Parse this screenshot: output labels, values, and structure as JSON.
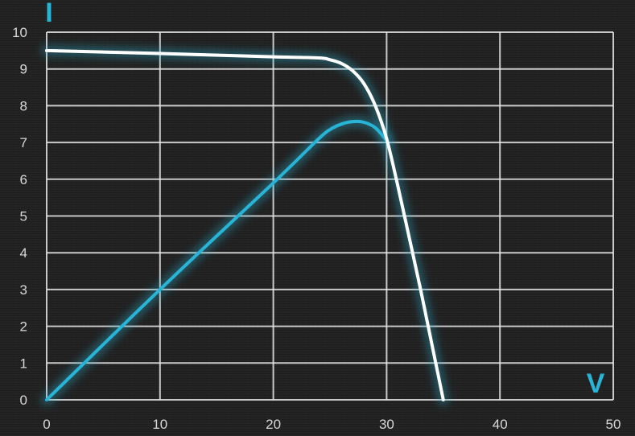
{
  "chart_data": {
    "type": "line",
    "title": "",
    "xlabel": "V",
    "ylabel": "I",
    "xlim": [
      0,
      50
    ],
    "ylim": [
      0,
      10
    ],
    "x_ticks": [
      0,
      10,
      20,
      30,
      40,
      50
    ],
    "y_ticks": [
      0,
      1,
      2,
      3,
      4,
      5,
      6,
      7,
      8,
      9,
      10
    ],
    "grid": true,
    "legend": "none",
    "series": [
      {
        "color": "#ffffff",
        "points": [
          [
            0,
            9.5
          ],
          [
            10,
            9.42
          ],
          [
            20,
            9.33
          ],
          [
            24,
            9.3
          ],
          [
            25,
            9.25
          ],
          [
            26,
            9.15
          ],
          [
            27,
            8.95
          ],
          [
            28,
            8.6
          ],
          [
            29,
            8.0
          ],
          [
            30,
            7.1
          ],
          [
            31,
            5.8
          ],
          [
            32,
            4.4
          ],
          [
            33,
            3.0
          ],
          [
            34,
            1.5
          ],
          [
            35,
            0
          ]
        ]
      },
      {
        "color": "#27b4d6",
        "points": [
          [
            0,
            0
          ],
          [
            10,
            3.0
          ],
          [
            20,
            5.9
          ],
          [
            24,
            7.1
          ],
          [
            25,
            7.35
          ],
          [
            26,
            7.5
          ],
          [
            27,
            7.57
          ],
          [
            28,
            7.55
          ],
          [
            29,
            7.4
          ],
          [
            30,
            7.05
          ]
        ]
      }
    ],
    "colors": {
      "background": "#1e1e1e",
      "grid": "#e6e6e6",
      "tick_text": "#d8d8d8",
      "axis_letter": "#27b4d6"
    }
  }
}
